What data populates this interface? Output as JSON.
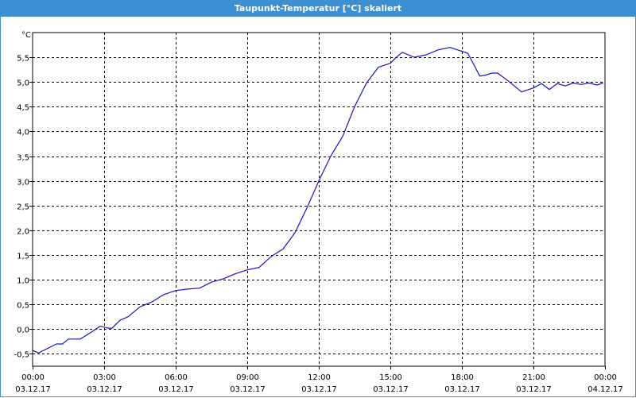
{
  "window": {
    "title": "Taupunkt-Temperatur [°C] skaliert"
  },
  "colors": {
    "titlebar": "#3c8fd0",
    "series": "#1414c8",
    "grid": "#000000",
    "plot_bg": "#ffffff"
  },
  "chart_data": {
    "type": "line",
    "title": "Taupunkt-Temperatur [°C] skaliert",
    "ylabel": "°C",
    "xlabel": "",
    "grid": true,
    "grid_style": "dashed",
    "xlim": [
      "2017-12-03 00:00",
      "2017-12-04 00:00"
    ],
    "ylim": [
      -0.75,
      6.0
    ],
    "yticks": [
      -0.5,
      0.0,
      0.5,
      1.0,
      1.5,
      2.0,
      2.5,
      3.0,
      3.5,
      4.0,
      4.5,
      5.0,
      5.5
    ],
    "ytick_labels": [
      "-0,5",
      "0,0",
      "0,5",
      "1,0",
      "1,5",
      "2,0",
      "2,5",
      "3,0",
      "3,5",
      "4,0",
      "4,5",
      "5,0",
      "5,5"
    ],
    "xticks": [
      {
        "time": "00:00",
        "date": "03.12.17"
      },
      {
        "time": "03:00",
        "date": "03.12.17"
      },
      {
        "time": "06:00",
        "date": "03.12.17"
      },
      {
        "time": "09:00",
        "date": "03.12.17"
      },
      {
        "time": "12:00",
        "date": "03.12.17"
      },
      {
        "time": "15:00",
        "date": "03.12.17"
      },
      {
        "time": "18:00",
        "date": "03.12.17"
      },
      {
        "time": "21:00",
        "date": "03.12.17"
      },
      {
        "time": "00:00",
        "date": "04.12.17"
      }
    ],
    "series": [
      {
        "x": [
          "2017-12-03 00:00",
          "2017-12-03 00:15",
          "2017-12-03 00:30",
          "2017-12-03 01:00",
          "2017-12-03 01:15",
          "2017-12-03 01:30",
          "2017-12-03 02:00",
          "2017-12-03 02:30",
          "2017-12-03 02:50",
          "2017-12-03 03:10",
          "2017-12-03 03:20",
          "2017-12-03 03:40",
          "2017-12-03 04:00",
          "2017-12-03 04:30",
          "2017-12-03 05:00",
          "2017-12-03 05:30",
          "2017-12-03 06:00",
          "2017-12-03 06:30",
          "2017-12-03 07:00",
          "2017-12-03 07:30",
          "2017-12-03 08:00",
          "2017-12-03 08:30",
          "2017-12-03 09:00",
          "2017-12-03 09:30",
          "2017-12-03 10:00",
          "2017-12-03 10:30",
          "2017-12-03 11:00",
          "2017-12-03 11:30",
          "2017-12-03 12:00",
          "2017-12-03 12:30",
          "2017-12-03 13:00",
          "2017-12-03 13:30",
          "2017-12-03 14:00",
          "2017-12-03 14:30",
          "2017-12-03 15:00",
          "2017-12-03 15:15",
          "2017-12-03 15:30",
          "2017-12-03 16:00",
          "2017-12-03 16:30",
          "2017-12-03 17:00",
          "2017-12-03 17:30",
          "2017-12-03 18:00",
          "2017-12-03 18:15",
          "2017-12-03 18:30",
          "2017-12-03 18:45",
          "2017-12-03 19:00",
          "2017-12-03 19:15",
          "2017-12-03 19:30",
          "2017-12-03 20:00",
          "2017-12-03 20:30",
          "2017-12-03 21:00",
          "2017-12-03 21:20",
          "2017-12-03 21:40",
          "2017-12-03 22:00",
          "2017-12-03 22:20",
          "2017-12-03 22:40",
          "2017-12-03 23:00",
          "2017-12-03 23:20",
          "2017-12-03 23:40",
          "2017-12-03 23:55"
        ],
        "y": [
          -0.43,
          -0.48,
          -0.42,
          -0.3,
          -0.3,
          -0.2,
          -0.2,
          -0.05,
          0.06,
          0.02,
          0.02,
          0.18,
          0.25,
          0.45,
          0.55,
          0.7,
          0.78,
          0.81,
          0.83,
          0.95,
          1.02,
          1.12,
          1.2,
          1.25,
          1.47,
          1.62,
          1.95,
          2.45,
          3.0,
          3.5,
          3.9,
          4.5,
          4.98,
          5.3,
          5.38,
          5.5,
          5.6,
          5.5,
          5.55,
          5.65,
          5.7,
          5.62,
          5.58,
          5.35,
          5.12,
          5.14,
          5.18,
          5.18,
          5.0,
          4.8,
          4.88,
          4.97,
          4.85,
          4.97,
          4.92,
          4.98,
          4.95,
          4.98,
          4.94,
          4.98
        ]
      }
    ]
  }
}
